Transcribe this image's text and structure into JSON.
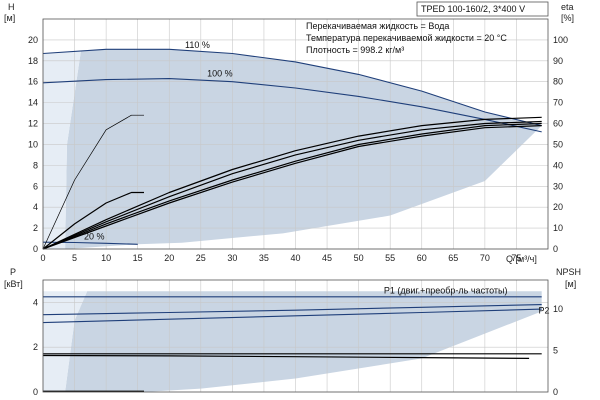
{
  "title_box": "TPED 100-160/2, 3*400 V",
  "info_lines": [
    "Перекачиваемая жидкость = Вода",
    "Температура перекачиваемой жидкости = 20 °C",
    "Плотность = 998.2 кг/м³"
  ],
  "colors": {
    "region_fill": "#c9d5e3",
    "region_light": "#e6edf5",
    "head_curve": "#1f3f7a",
    "eta_curve": "#000000",
    "power_curve": "#1f3f7a",
    "npsh_curve": "#000000"
  },
  "chart_data": [
    {
      "type": "line",
      "name": "head-and-efficiency",
      "xlabel": "Q [м³/ч]",
      "ylabel_left": [
        "H",
        "[м]"
      ],
      "ylabel_right": [
        "eta",
        "[%]"
      ],
      "xlim": [
        0,
        80
      ],
      "ylim": [
        0,
        22
      ],
      "y2lim": [
        0,
        110
      ],
      "xticks": [
        0,
        5,
        10,
        15,
        20,
        25,
        30,
        35,
        40,
        45,
        50,
        55,
        60,
        65,
        70,
        75
      ],
      "yticks": [
        0,
        2,
        4,
        6,
        8,
        10,
        12,
        14,
        16,
        18,
        20
      ],
      "y2ticks": [
        0,
        10,
        20,
        30,
        40,
        50,
        60,
        70,
        80,
        90,
        100
      ],
      "grid": true,
      "curve_labels": [
        {
          "text": "110 %",
          "x": 55,
          "y": 19.2
        },
        {
          "text": "100 %",
          "x": 60,
          "y": 16.6
        },
        {
          "text": "20 %",
          "x": 60,
          "y": 1.1
        }
      ],
      "series": [
        {
          "axis": "left",
          "role": "head",
          "x": [
            0,
            10,
            20,
            30,
            40,
            50,
            60,
            70,
            79
          ],
          "y": [
            18.7,
            19.1,
            19.1,
            18.7,
            17.9,
            16.7,
            15.1,
            13.1,
            11.8
          ]
        },
        {
          "axis": "left",
          "role": "head",
          "x": [
            0,
            10,
            20,
            30,
            40,
            50,
            60,
            70,
            79
          ],
          "y": [
            15.9,
            16.2,
            16.3,
            16.0,
            15.4,
            14.6,
            13.6,
            12.4,
            11.2
          ]
        },
        {
          "axis": "left",
          "role": "head",
          "x": [
            0,
            5,
            10,
            15
          ],
          "y": [
            0.65,
            0.62,
            0.55,
            0.45
          ]
        },
        {
          "axis": "right",
          "role": "efficiency",
          "x": [
            0,
            5,
            10,
            14,
            16
          ],
          "y": [
            0,
            33,
            57,
            64,
            64
          ]
        },
        {
          "axis": "right",
          "role": "efficiency",
          "x": [
            0,
            5,
            10,
            14,
            16
          ],
          "y": [
            0,
            12,
            22,
            27,
            27
          ]
        },
        {
          "axis": "right",
          "role": "efficiency",
          "x": [
            0,
            10,
            20,
            30,
            40,
            50,
            60,
            70,
            79
          ],
          "y": [
            0,
            14,
            27,
            38,
            47,
            54,
            59,
            62,
            63
          ]
        },
        {
          "axis": "right",
          "role": "efficiency",
          "x": [
            0,
            10,
            20,
            30,
            40,
            50,
            60,
            70,
            79
          ],
          "y": [
            0,
            13,
            25,
            36,
            45,
            52,
            57,
            60,
            61
          ]
        },
        {
          "axis": "right",
          "role": "efficiency",
          "x": [
            0,
            10,
            20,
            30,
            40,
            50,
            60,
            70,
            79
          ],
          "y": [
            0,
            12,
            23,
            33,
            42,
            50,
            55,
            59,
            60
          ]
        },
        {
          "axis": "right",
          "role": "efficiency",
          "x": [
            0,
            10,
            20,
            30,
            40,
            50,
            60,
            70,
            79
          ],
          "y": [
            0,
            11,
            22,
            32,
            41,
            49,
            54,
            58,
            59
          ]
        }
      ]
    },
    {
      "type": "line",
      "name": "power-and-npsh",
      "xlabel": "",
      "ylabel_left": [
        "P",
        "[кВт]"
      ],
      "ylabel_right": [
        "NPSH",
        "[м]"
      ],
      "xlim": [
        0,
        80
      ],
      "ylim": [
        0,
        5
      ],
      "y2lim": [
        0,
        13.5
      ],
      "yticks": [
        0,
        2,
        4
      ],
      "y2ticks": [
        0,
        5,
        10
      ],
      "grid": true,
      "curve_labels": [
        {
          "text": "P1 (двиг.+преобр-ль частоты)",
          "x": 54,
          "y": 4.4
        },
        {
          "text": "P2",
          "x": 78.5,
          "y": 3.5
        }
      ],
      "series": [
        {
          "axis": "left",
          "role": "power",
          "x": [
            0,
            79
          ],
          "y": [
            4.25,
            4.25
          ]
        },
        {
          "axis": "left",
          "role": "power",
          "x": [
            0,
            20,
            40,
            60,
            79
          ],
          "y": [
            3.45,
            3.55,
            3.65,
            3.78,
            3.9
          ]
        },
        {
          "axis": "left",
          "role": "power",
          "x": [
            0,
            20,
            40,
            60,
            79
          ],
          "y": [
            3.1,
            3.25,
            3.4,
            3.55,
            3.7
          ]
        },
        {
          "axis": "right",
          "role": "npsh",
          "x": [
            0,
            79
          ],
          "y": [
            4.6,
            4.6
          ]
        },
        {
          "axis": "right",
          "role": "npsh",
          "x": [
            0,
            20,
            40,
            60,
            77
          ],
          "y": [
            4.4,
            4.35,
            4.25,
            4.15,
            4.05
          ]
        },
        {
          "axis": "right",
          "role": "npsh",
          "x": [
            0,
            16
          ],
          "y": [
            0.1,
            0.1
          ]
        }
      ]
    }
  ]
}
